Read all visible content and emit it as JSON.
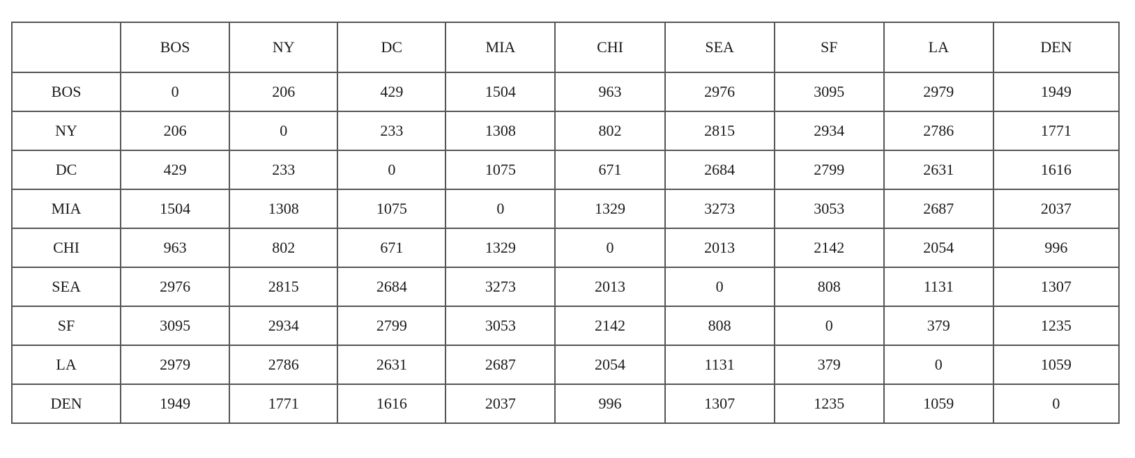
{
  "chart_data": {
    "type": "table",
    "corner": "",
    "columns": [
      "BOS",
      "NY",
      "DC",
      "MIA",
      "CHI",
      "SEA",
      "SF",
      "LA",
      "DEN"
    ],
    "rows": [
      {
        "label": "BOS",
        "values": [
          "0",
          "206",
          "429",
          "1504",
          "963",
          "2976",
          "3095",
          "2979",
          "1949"
        ]
      },
      {
        "label": "NY",
        "values": [
          "206",
          "0",
          "233",
          "1308",
          "802",
          "2815",
          "2934",
          "2786",
          "1771"
        ]
      },
      {
        "label": "DC",
        "values": [
          "429",
          "233",
          "0",
          "1075",
          "671",
          "2684",
          "2799",
          "2631",
          "1616"
        ]
      },
      {
        "label": "MIA",
        "values": [
          "1504",
          "1308",
          "1075",
          "0",
          "1329",
          "3273",
          "3053",
          "2687",
          "2037"
        ]
      },
      {
        "label": "CHI",
        "values": [
          "963",
          "802",
          "671",
          "1329",
          "0",
          "2013",
          "2142",
          "2054",
          "996"
        ]
      },
      {
        "label": "SEA",
        "values": [
          "2976",
          "2815",
          "2684",
          "3273",
          "2013",
          "0",
          "808",
          "1131",
          "1307"
        ]
      },
      {
        "label": "SF",
        "values": [
          "3095",
          "2934",
          "2799",
          "3053",
          "2142",
          "808",
          "0",
          "379",
          "1235"
        ]
      },
      {
        "label": "LA",
        "values": [
          "2979",
          "2786",
          "2631",
          "2687",
          "2054",
          "1131",
          "379",
          "0",
          "1059"
        ]
      },
      {
        "label": "DEN",
        "values": [
          "1949",
          "1771",
          "1616",
          "2037",
          "996",
          "1307",
          "1235",
          "1059",
          "0"
        ]
      }
    ]
  }
}
